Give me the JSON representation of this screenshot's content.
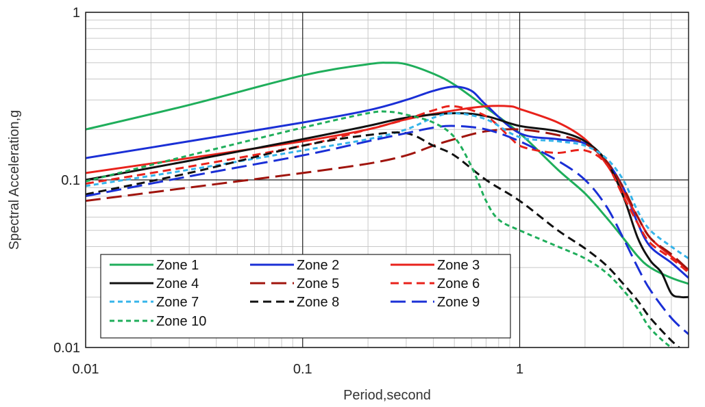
{
  "chart_data": {
    "type": "line",
    "xlabel": "Period,second",
    "ylabel": "Spectral Acceleration,g",
    "xscale": "log",
    "yscale": "log",
    "xlim": [
      0.01,
      6
    ],
    "ylim": [
      0.01,
      1
    ],
    "x_ticks": [
      {
        "value": 0.01,
        "label": "0.01"
      },
      {
        "value": 0.1,
        "label": "0.1"
      },
      {
        "value": 1,
        "label": "1"
      }
    ],
    "y_ticks": [
      {
        "value": 0.01,
        "label": "0.01"
      },
      {
        "value": 0.1,
        "label": "0.1"
      },
      {
        "value": 1,
        "label": "1"
      }
    ],
    "grid": true,
    "legend_position": "bottom-left",
    "series": [
      {
        "name": "Zone 1",
        "color": "#1fae5b",
        "dash": "solid",
        "points": [
          [
            0.01,
            0.2
          ],
          [
            0.03,
            0.28
          ],
          [
            0.1,
            0.42
          ],
          [
            0.2,
            0.49
          ],
          [
            0.25,
            0.5
          ],
          [
            0.3,
            0.49
          ],
          [
            0.4,
            0.43
          ],
          [
            0.5,
            0.37
          ],
          [
            0.7,
            0.27
          ],
          [
            1.0,
            0.19
          ],
          [
            1.5,
            0.115
          ],
          [
            2.0,
            0.083
          ],
          [
            2.5,
            0.06
          ],
          [
            3.0,
            0.045
          ],
          [
            3.5,
            0.035
          ],
          [
            4.0,
            0.03
          ],
          [
            5.0,
            0.026
          ],
          [
            6.0,
            0.024
          ]
        ]
      },
      {
        "name": "Zone 2",
        "color": "#1a2fd6",
        "dash": "solid",
        "points": [
          [
            0.01,
            0.135
          ],
          [
            0.03,
            0.17
          ],
          [
            0.1,
            0.22
          ],
          [
            0.2,
            0.26
          ],
          [
            0.3,
            0.3
          ],
          [
            0.4,
            0.34
          ],
          [
            0.5,
            0.36
          ],
          [
            0.6,
            0.34
          ],
          [
            0.7,
            0.28
          ],
          [
            1.0,
            0.19
          ],
          [
            1.5,
            0.175
          ],
          [
            2.0,
            0.165
          ],
          [
            2.5,
            0.13
          ],
          [
            3.0,
            0.09
          ],
          [
            3.5,
            0.055
          ],
          [
            4.0,
            0.04
          ],
          [
            5.0,
            0.032
          ],
          [
            6.0,
            0.026
          ]
        ]
      },
      {
        "name": "Zone 3",
        "color": "#e8221b",
        "dash": "solid",
        "points": [
          [
            0.01,
            0.11
          ],
          [
            0.03,
            0.135
          ],
          [
            0.1,
            0.17
          ],
          [
            0.2,
            0.2
          ],
          [
            0.3,
            0.23
          ],
          [
            0.5,
            0.26
          ],
          [
            0.7,
            0.275
          ],
          [
            0.9,
            0.275
          ],
          [
            1.0,
            0.265
          ],
          [
            1.5,
            0.22
          ],
          [
            2.0,
            0.175
          ],
          [
            2.5,
            0.125
          ],
          [
            3.0,
            0.085
          ],
          [
            3.5,
            0.06
          ],
          [
            4.0,
            0.045
          ],
          [
            5.0,
            0.035
          ],
          [
            6.0,
            0.029
          ]
        ]
      },
      {
        "name": "Zone 4",
        "color": "#111111",
        "dash": "solid",
        "points": [
          [
            0.01,
            0.1
          ],
          [
            0.03,
            0.13
          ],
          [
            0.1,
            0.175
          ],
          [
            0.2,
            0.21
          ],
          [
            0.3,
            0.235
          ],
          [
            0.5,
            0.25
          ],
          [
            0.7,
            0.24
          ],
          [
            1.0,
            0.21
          ],
          [
            1.5,
            0.195
          ],
          [
            2.0,
            0.17
          ],
          [
            2.5,
            0.13
          ],
          [
            3.0,
            0.08
          ],
          [
            3.5,
            0.045
          ],
          [
            4.0,
            0.033
          ],
          [
            4.5,
            0.028
          ],
          [
            5.0,
            0.021
          ],
          [
            5.5,
            0.02
          ],
          [
            6.0,
            0.02
          ]
        ]
      },
      {
        "name": "Zone 5",
        "color": "#a0140d",
        "dash": "long-dash",
        "points": [
          [
            0.01,
            0.075
          ],
          [
            0.03,
            0.09
          ],
          [
            0.1,
            0.11
          ],
          [
            0.2,
            0.125
          ],
          [
            0.3,
            0.14
          ],
          [
            0.4,
            0.16
          ],
          [
            0.5,
            0.175
          ],
          [
            0.7,
            0.195
          ],
          [
            1.0,
            0.2
          ],
          [
            1.5,
            0.185
          ],
          [
            2.0,
            0.165
          ],
          [
            2.5,
            0.13
          ],
          [
            3.0,
            0.09
          ],
          [
            3.5,
            0.06
          ],
          [
            4.0,
            0.045
          ],
          [
            5.0,
            0.036
          ],
          [
            6.0,
            0.029
          ]
        ]
      },
      {
        "name": "Zone 6",
        "color": "#e8221b",
        "dash": "dash",
        "points": [
          [
            0.01,
            0.095
          ],
          [
            0.03,
            0.12
          ],
          [
            0.1,
            0.16
          ],
          [
            0.2,
            0.2
          ],
          [
            0.3,
            0.23
          ],
          [
            0.4,
            0.26
          ],
          [
            0.5,
            0.275
          ],
          [
            0.7,
            0.24
          ],
          [
            0.9,
            0.18
          ],
          [
            1.0,
            0.16
          ],
          [
            1.2,
            0.15
          ],
          [
            1.5,
            0.145
          ],
          [
            2.0,
            0.15
          ],
          [
            2.5,
            0.125
          ],
          [
            3.0,
            0.08
          ],
          [
            3.5,
            0.055
          ],
          [
            4.0,
            0.042
          ],
          [
            5.0,
            0.034
          ],
          [
            6.0,
            0.028
          ]
        ]
      },
      {
        "name": "Zone 7",
        "color": "#35b4ea",
        "dash": "short-dash",
        "points": [
          [
            0.01,
            0.092
          ],
          [
            0.03,
            0.115
          ],
          [
            0.1,
            0.15
          ],
          [
            0.2,
            0.175
          ],
          [
            0.3,
            0.2
          ],
          [
            0.4,
            0.235
          ],
          [
            0.5,
            0.25
          ],
          [
            0.7,
            0.23
          ],
          [
            1.0,
            0.18
          ],
          [
            1.5,
            0.17
          ],
          [
            2.0,
            0.16
          ],
          [
            2.5,
            0.135
          ],
          [
            3.0,
            0.1
          ],
          [
            3.5,
            0.065
          ],
          [
            4.0,
            0.05
          ],
          [
            5.0,
            0.04
          ],
          [
            6.0,
            0.034
          ]
        ]
      },
      {
        "name": "Zone 8",
        "color": "#111111",
        "dash": "dash",
        "points": [
          [
            0.01,
            0.082
          ],
          [
            0.03,
            0.11
          ],
          [
            0.1,
            0.16
          ],
          [
            0.2,
            0.185
          ],
          [
            0.3,
            0.19
          ],
          [
            0.4,
            0.16
          ],
          [
            0.5,
            0.14
          ],
          [
            0.7,
            0.1
          ],
          [
            1.0,
            0.075
          ],
          [
            1.5,
            0.05
          ],
          [
            2.0,
            0.039
          ],
          [
            2.5,
            0.031
          ],
          [
            3.0,
            0.024
          ],
          [
            3.5,
            0.019
          ],
          [
            4.0,
            0.015
          ],
          [
            5.0,
            0.011
          ],
          [
            6.0,
            0.009
          ]
        ]
      },
      {
        "name": "Zone 9",
        "color": "#1a2fd6",
        "dash": "long-dash",
        "points": [
          [
            0.01,
            0.08
          ],
          [
            0.03,
            0.105
          ],
          [
            0.1,
            0.14
          ],
          [
            0.2,
            0.17
          ],
          [
            0.3,
            0.19
          ],
          [
            0.4,
            0.205
          ],
          [
            0.5,
            0.21
          ],
          [
            0.7,
            0.2
          ],
          [
            1.0,
            0.17
          ],
          [
            1.5,
            0.13
          ],
          [
            2.0,
            0.1
          ],
          [
            2.5,
            0.07
          ],
          [
            3.0,
            0.045
          ],
          [
            3.5,
            0.03
          ],
          [
            4.0,
            0.022
          ],
          [
            5.0,
            0.015
          ],
          [
            6.0,
            0.012
          ]
        ]
      },
      {
        "name": "Zone 10",
        "color": "#1fae5b",
        "dash": "short-dash",
        "points": [
          [
            0.01,
            0.098
          ],
          [
            0.03,
            0.14
          ],
          [
            0.1,
            0.205
          ],
          [
            0.2,
            0.25
          ],
          [
            0.25,
            0.255
          ],
          [
            0.3,
            0.245
          ],
          [
            0.4,
            0.22
          ],
          [
            0.5,
            0.18
          ],
          [
            0.6,
            0.12
          ],
          [
            0.7,
            0.075
          ],
          [
            0.8,
            0.058
          ],
          [
            1.0,
            0.05
          ],
          [
            1.5,
            0.04
          ],
          [
            2.0,
            0.034
          ],
          [
            2.5,
            0.028
          ],
          [
            3.0,
            0.022
          ],
          [
            3.5,
            0.017
          ],
          [
            4.0,
            0.013
          ],
          [
            5.0,
            0.01
          ],
          [
            6.0,
            0.009
          ]
        ]
      }
    ]
  }
}
